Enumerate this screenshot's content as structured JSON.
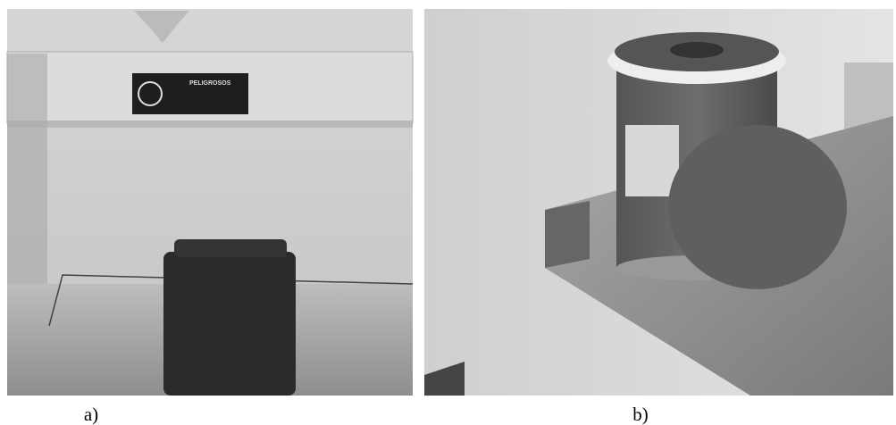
{
  "panels": [
    {
      "caption": "a)",
      "sign_text": "PELIGROSOS"
    },
    {
      "caption": "b)"
    }
  ]
}
